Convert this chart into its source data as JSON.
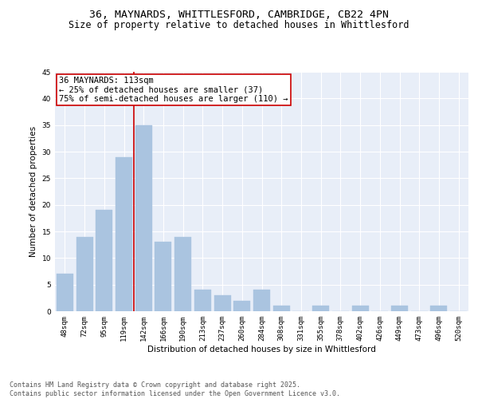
{
  "title1": "36, MAYNARDS, WHITTLESFORD, CAMBRIDGE, CB22 4PN",
  "title2": "Size of property relative to detached houses in Whittlesford",
  "xlabel": "Distribution of detached houses by size in Whittlesford",
  "ylabel": "Number of detached properties",
  "categories": [
    "48sqm",
    "72sqm",
    "95sqm",
    "119sqm",
    "142sqm",
    "166sqm",
    "190sqm",
    "213sqm",
    "237sqm",
    "260sqm",
    "284sqm",
    "308sqm",
    "331sqm",
    "355sqm",
    "378sqm",
    "402sqm",
    "426sqm",
    "449sqm",
    "473sqm",
    "496sqm",
    "520sqm"
  ],
  "values": [
    7,
    14,
    19,
    29,
    35,
    13,
    14,
    4,
    3,
    2,
    4,
    1,
    0,
    1,
    0,
    1,
    0,
    1,
    0,
    1,
    0
  ],
  "bar_color": "#aac4e0",
  "bar_edge_color": "#aac4e0",
  "vline_color": "#cc0000",
  "annotation_text": "36 MAYNARDS: 113sqm\n← 25% of detached houses are smaller (37)\n75% of semi-detached houses are larger (110) →",
  "annotation_box_color": "#ffffff",
  "annotation_box_edge_color": "#cc0000",
  "ylim": [
    0,
    45
  ],
  "yticks": [
    0,
    5,
    10,
    15,
    20,
    25,
    30,
    35,
    40,
    45
  ],
  "footer1": "Contains HM Land Registry data © Crown copyright and database right 2025.",
  "footer2": "Contains public sector information licensed under the Open Government Licence v3.0.",
  "bg_color": "#e8eef8",
  "grid_color": "#ffffff",
  "title_fontsize": 9.5,
  "subtitle_fontsize": 8.5,
  "axis_label_fontsize": 7.5,
  "tick_fontsize": 6.5,
  "annotation_fontsize": 7.5,
  "footer_fontsize": 6
}
